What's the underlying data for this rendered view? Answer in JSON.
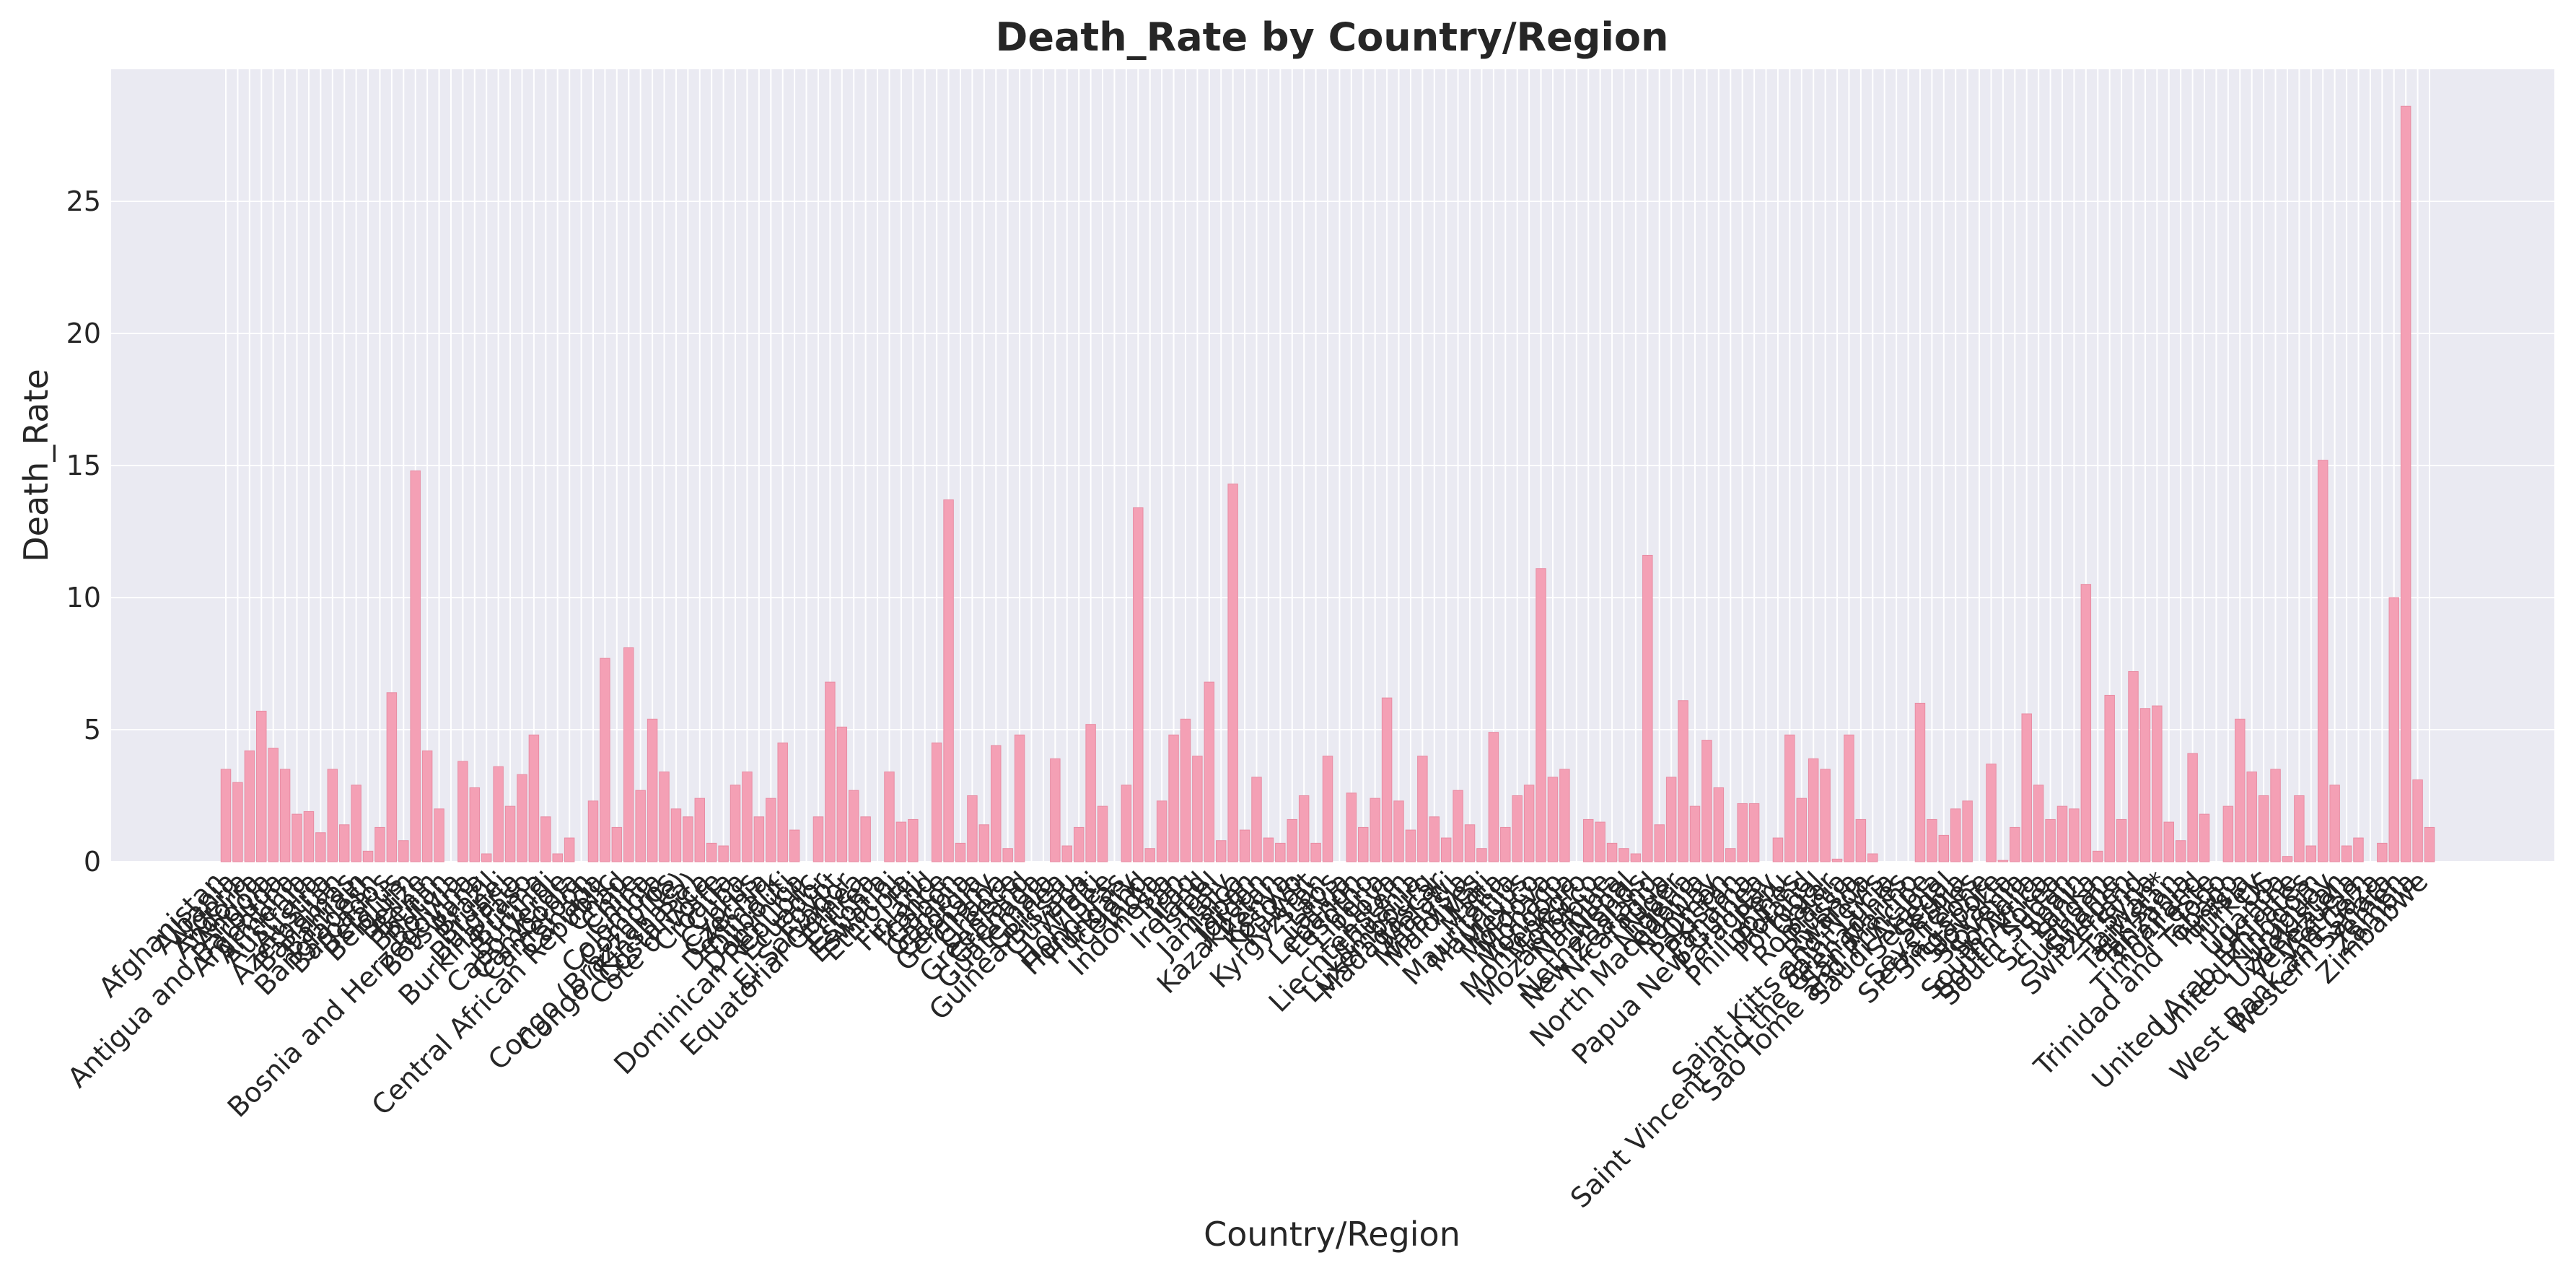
{
  "chart_data": {
    "type": "bar",
    "title": "Death_Rate by Country/Region",
    "xlabel": "Country/Region",
    "ylabel": "Death_Rate",
    "ylim": [
      0,
      30
    ],
    "yticks": [
      0,
      5,
      10,
      15,
      20,
      25
    ],
    "grid": true,
    "legend": "none",
    "colors": {
      "bar": "#f4a0b5",
      "bar_edge": "#e88ca3",
      "plot_bg": "#eaeaf2",
      "grid": "#ffffff",
      "text": "#262626"
    },
    "categories": [
      "Afghanistan",
      "Albania",
      "Algeria",
      "Andorra",
      "Angola",
      "Antigua and Barbuda",
      "Argentina",
      "Armenia",
      "Australia",
      "Austria",
      "Azerbaijan",
      "Bahamas",
      "Bahrain",
      "Bangladesh",
      "Barbados",
      "Belarus",
      "Belgium",
      "Belize",
      "Benin",
      "Bhutan",
      "Bolivia",
      "Bosnia and Herzegovina",
      "Botswana",
      "Brazil",
      "Brunei",
      "Bulgaria",
      "Burkina Faso",
      "Burma",
      "Burundi",
      "Cabo Verde",
      "Cambodia",
      "Cameroon",
      "Canada",
      "Central African Republic",
      "Chad",
      "Chile",
      "China",
      "Colombia",
      "Comoros",
      "Congo (Brazzaville)",
      "Congo (Kinshasa)",
      "Costa Rica",
      "Cote d'Ivoire",
      "Croatia",
      "Cuba",
      "Cyprus",
      "Czechia",
      "Denmark",
      "Djibouti",
      "Dominica",
      "Dominican Republic",
      "Ecuador",
      "Egypt",
      "El Salvador",
      "Equatorial Guinea",
      "Eritrea",
      "Estonia",
      "Eswatini",
      "Ethiopia",
      "Fiji",
      "Finland",
      "France",
      "Gabon",
      "Gambia",
      "Georgia",
      "Germany",
      "Ghana",
      "Greece",
      "Greenland",
      "Grenada",
      "Guatemala",
      "Guinea",
      "Guinea-Bissau",
      "Guyana",
      "Haiti",
      "Holy See",
      "Honduras",
      "Hungary",
      "Iceland",
      "India",
      "Indonesia",
      "Iran",
      "Iraq",
      "Ireland",
      "Israel",
      "Italy",
      "Jamaica",
      "Japan",
      "Jordan",
      "Kazakhstan",
      "Kenya",
      "Kosovo",
      "Kuwait",
      "Kyrgyzstan",
      "Laos",
      "Latvia",
      "Lebanon",
      "Lesotho",
      "Liberia",
      "Libya",
      "Liechtenstein",
      "Lithuania",
      "Luxembourg",
      "Madagascar",
      "Malawi",
      "Malaysia",
      "Maldives",
      "Mali",
      "Malta",
      "Mauritania",
      "Mauritius",
      "Mexico",
      "Moldova",
      "Monaco",
      "Mongolia",
      "Montenegro",
      "Morocco",
      "Mozambique",
      "Namibia",
      "Nepal",
      "Netherlands",
      "New Zealand",
      "Nicaragua",
      "Niger",
      "Nigeria",
      "North Macedonia",
      "Norway",
      "Oman",
      "Pakistan",
      "Panama",
      "Papua New Guinea",
      "Paraguay",
      "Peru",
      "Philippines",
      "Poland",
      "Portugal",
      "Qatar",
      "Romania",
      "Russia",
      "Rwanda",
      "Saint Kitts and Nevis",
      "Saint Lucia",
      "Saint Vincent and the Grenadines",
      "San Marino",
      "Sao Tome and Principe",
      "Saudi Arabia",
      "Senegal",
      "Serbia",
      "Seychelles",
      "Sierra Leone",
      "Singapore",
      "Slovakia",
      "Slovenia",
      "Somalia",
      "South Africa",
      "South Korea",
      "South Sudan",
      "Spain",
      "Sri Lanka",
      "Sudan",
      "Suriname",
      "Sweden",
      "Switzerland",
      "Syria",
      "Taiwan*",
      "Tajikistan",
      "Tanzania",
      "Thailand",
      "Timor-Leste",
      "Togo",
      "Trinidad and Tobago",
      "Tunisia",
      "Turkey",
      "US",
      "Uganda",
      "Ukraine",
      "United Arab Emirates",
      "United Kingdom",
      "Uruguay",
      "Uzbekistan",
      "Venezuela",
      "Vietnam",
      "West Bank and Gaza",
      "Western Sahara",
      "Yemen",
      "Zambia",
      "Zimbabwe"
    ],
    "values": [
      3.5,
      3.0,
      4.2,
      5.7,
      4.3,
      3.5,
      1.8,
      1.9,
      1.1,
      3.5,
      1.4,
      2.9,
      0.4,
      1.3,
      6.4,
      0.8,
      14.8,
      4.2,
      2.0,
      0.0,
      3.8,
      2.8,
      0.3,
      3.6,
      2.1,
      3.3,
      4.8,
      1.7,
      0.3,
      0.9,
      0.0,
      2.3,
      7.7,
      1.3,
      8.1,
      2.7,
      5.4,
      3.4,
      2.0,
      1.7,
      2.4,
      0.7,
      0.6,
      2.9,
      3.4,
      1.7,
      2.4,
      4.5,
      1.2,
      0.0,
      1.7,
      6.8,
      5.1,
      2.7,
      1.7,
      0.0,
      3.4,
      1.5,
      1.6,
      0.0,
      4.5,
      13.7,
      0.7,
      2.5,
      1.4,
      4.4,
      0.5,
      4.8,
      0.0,
      0.0,
      3.9,
      0.6,
      1.3,
      5.2,
      2.1,
      0.0,
      2.9,
      13.4,
      0.5,
      2.3,
      4.8,
      5.4,
      4.0,
      6.8,
      0.8,
      14.3,
      1.2,
      3.2,
      0.9,
      0.7,
      1.6,
      2.5,
      0.7,
      4.0,
      0.0,
      2.6,
      1.3,
      2.4,
      6.2,
      2.3,
      1.2,
      4.0,
      1.7,
      0.9,
      2.7,
      1.4,
      0.5,
      4.9,
      1.3,
      2.5,
      2.9,
      11.1,
      3.2,
      3.5,
      0.0,
      1.6,
      1.5,
      0.7,
      0.5,
      0.3,
      11.6,
      1.4,
      3.2,
      6.1,
      2.1,
      4.6,
      2.8,
      0.5,
      2.2,
      2.2,
      0.0,
      0.9,
      4.8,
      2.4,
      3.9,
      3.5,
      0.1,
      4.8,
      1.6,
      0.3,
      0.0,
      0.0,
      0.0,
      6.0,
      1.6,
      1.0,
      2.0,
      2.3,
      0.0,
      3.7,
      0.05,
      1.3,
      5.6,
      2.9,
      1.6,
      2.1,
      2.0,
      10.5,
      0.4,
      6.3,
      1.6,
      7.2,
      5.8,
      5.9,
      1.5,
      0.8,
      4.1,
      1.8,
      0.0,
      2.1,
      5.4,
      3.4,
      2.5,
      3.5,
      0.2,
      2.5,
      0.6,
      15.2,
      2.9,
      0.6,
      0.9,
      0.0,
      0.7,
      10.0,
      28.6,
      3.1,
      1.3
    ],
    "xtick_labels_shown": [
      "Afghanistan",
      "Albania",
      "Algeria",
      "Andorra",
      "Angola",
      "Antigua and Barbuda",
      "Argentina",
      "Armenia",
      "Australia",
      "Austria",
      "Azerbaijan",
      "Bahamas",
      "Bahrain",
      "Bangladesh",
      "Barbados",
      "Belarus",
      "Belgium",
      "Belize",
      "Benin",
      "Bhutan",
      "Bolivia",
      "Bosnia and Herzegovina",
      "Botswana",
      "Brazil",
      "Brunei",
      "Bulgaria",
      "Burkina Faso",
      "Burma",
      "Burundi",
      "Cabo Verde",
      "Cambodia",
      "Cameroon",
      "Canada",
      "Central African Republic",
      "Chad",
      "Chile",
      "China",
      "Colombia",
      "Comoros",
      "Congo (Brazzaville)",
      "Congo (Kinshasa)",
      "Costa Rica",
      "Cote d'Ivoire",
      "Croatia",
      "Cuba",
      "Cyprus",
      "Czechia",
      "Denmark",
      "Djibouti",
      "Dominica",
      "Dominican Republic",
      "Ecuador",
      "Egypt",
      "El Salvador",
      "Equatorial Guinea",
      "Eritrea",
      "Estonia",
      "Eswatini",
      "Ethiopia",
      "Fiji",
      "Finland",
      "France",
      "Gabon",
      "Gambia",
      "Georgia",
      "Germany",
      "Ghana",
      "Greece",
      "Greenland",
      "Grenada",
      "Guatemala",
      "Guinea",
      "Guinea-Bissau",
      "Guyana",
      "Haiti",
      "Holy See",
      "Honduras",
      "Hungary",
      "Iceland",
      "India",
      "Indonesia",
      "Iran",
      "Iraq",
      "Ireland",
      "Israel",
      "Italy",
      "Jamaica",
      "Japan",
      "Jordan",
      "Kazakhstan",
      "Kenya",
      "Kosovo",
      "Kuwait",
      "Kyrgyzstan",
      "Laos",
      "Latvia",
      "Lebanon",
      "Lesotho",
      "Liberia",
      "Libya",
      "Liechtenstein",
      "Lithuania",
      "Luxembourg",
      "Madagascar",
      "Malawi",
      "Malaysia",
      "Maldives",
      "Mali",
      "Malta",
      "Mauritania",
      "Mauritius",
      "Mexico",
      "Moldova",
      "Monaco",
      "Mongolia",
      "Montenegro",
      "Morocco",
      "Mozambique",
      "Namibia",
      "Nepal",
      "Netherlands",
      "New Zealand",
      "Nicaragua",
      "Niger",
      "Nigeria",
      "North Macedonia",
      "Norway",
      "Oman",
      "Pakistan",
      "Panama",
      "Papua New Guinea",
      "Paraguay",
      "Peru",
      "Philippines",
      "Poland",
      "Portugal",
      "Qatar",
      "Romania",
      "Russia",
      "Rwanda",
      "Saint Kitts and Nevis",
      "Saint Lucia",
      "Saint Vincent and the Grenadines",
      "San Marino",
      "Sao Tome and Principe",
      "Saudi Arabia",
      "Senegal",
      "Serbia",
      "Seychelles",
      "Sierra Leone",
      "Singapore",
      "Slovakia",
      "Slovenia",
      "Somalia",
      "South Africa",
      "South Korea",
      "South Sudan",
      "Spain",
      "Sri Lanka",
      "Sudan",
      "Suriname",
      "Sweden",
      "Switzerland",
      "Syria",
      "Taiwan*",
      "Tajikistan",
      "Tanzania",
      "Thailand",
      "Timor-Leste",
      "Togo",
      "Trinidad and Tobago",
      "Tunisia",
      "Turkey",
      "US",
      "Uganda",
      "Ukraine",
      "United Arab Emirates",
      "United Kingdom",
      "Uruguay",
      "Uzbekistan",
      "Venezuela",
      "Vietnam",
      "West Bank and Gaza",
      "Western Sahara",
      "Yemen",
      "Zambia",
      "Zimbabwe"
    ]
  }
}
